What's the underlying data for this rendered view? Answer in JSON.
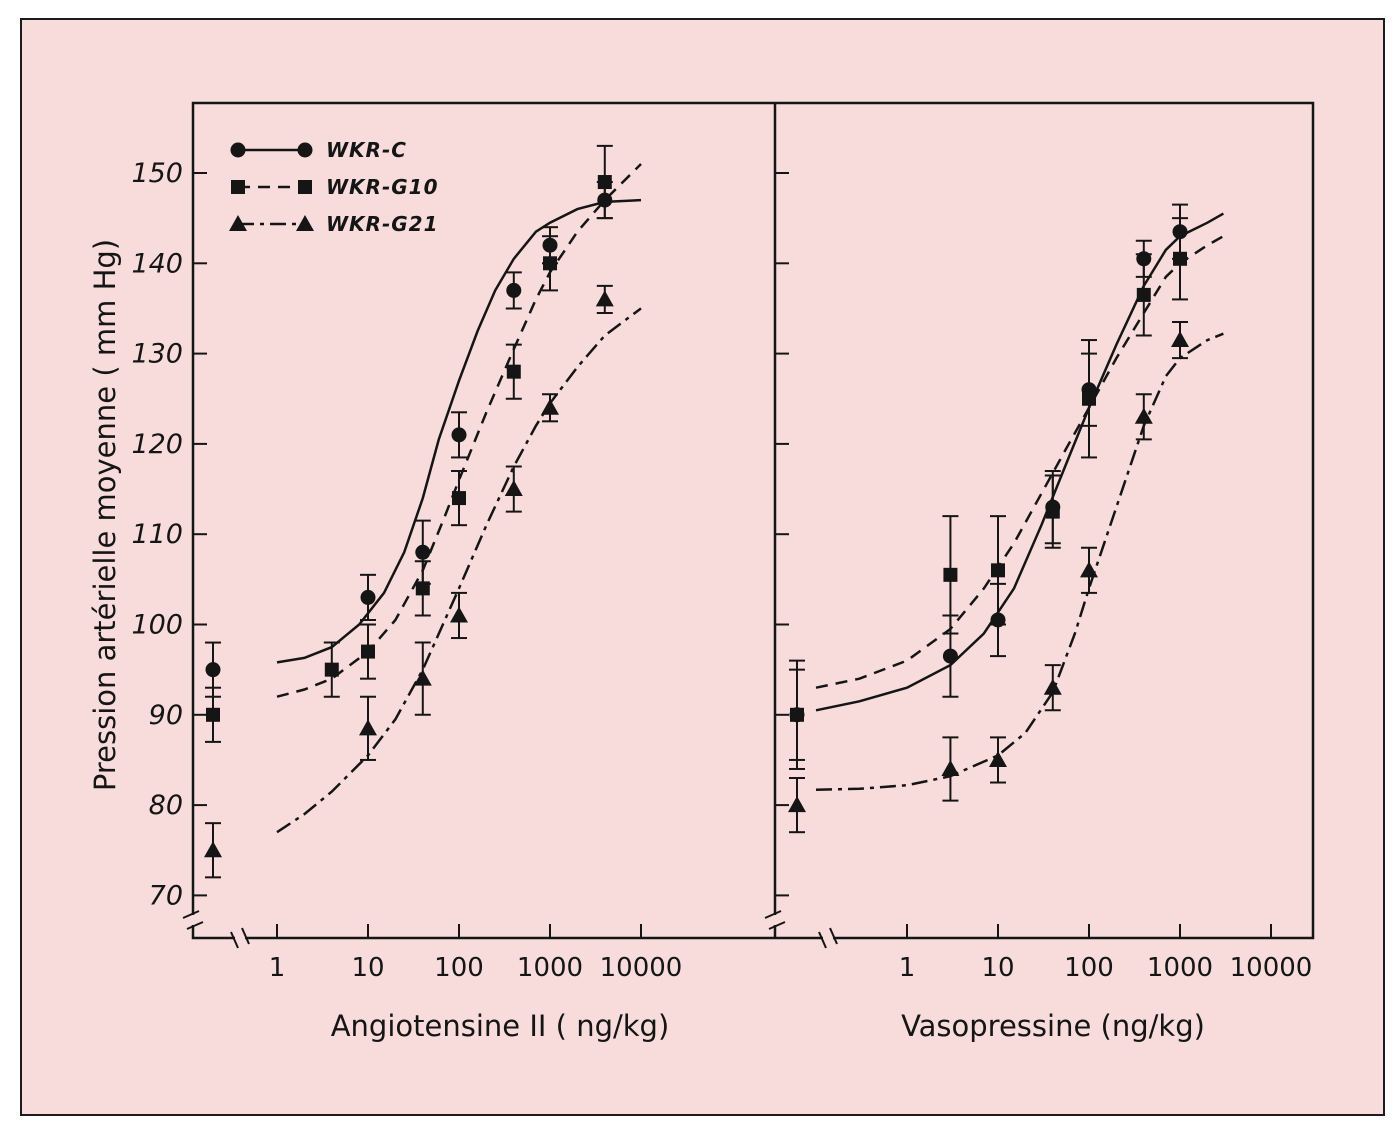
{
  "chart_data": {
    "type": "line",
    "y_label": "Pression artérielle moyenne ( mm Hg)",
    "y_ticks": [
      "70",
      "80",
      "90",
      "100",
      "110",
      "120",
      "130",
      "140",
      "150"
    ],
    "ylim": [
      68,
      158
    ],
    "x_scale": "log",
    "legend": [
      {
        "name": "WKR-C",
        "marker": "circle",
        "line": "solid"
      },
      {
        "name": "WKR-G10",
        "marker": "square",
        "line": "dashed"
      },
      {
        "name": "WKR-G21",
        "marker": "triangle",
        "line": "dash-dot"
      }
    ],
    "colors": {
      "background": "#f8dcdc",
      "ink": "#151515"
    },
    "panels": [
      {
        "x_label": "Angiotensine II ( ng/kg)",
        "x_ticks": [
          "1",
          "10",
          "100",
          "1000",
          "10000"
        ],
        "series": [
          {
            "name": "WKR-C",
            "baseline": {
              "y": 95,
              "err": 3
            },
            "points": [
              {
                "x": 10,
                "y": 103,
                "err": 2.5
              },
              {
                "x": 40,
                "y": 108,
                "err": 3.5
              },
              {
                "x": 100,
                "y": 121,
                "err": 2.5
              },
              {
                "x": 400,
                "y": 137,
                "err": 2
              },
              {
                "x": 1000,
                "y": 142,
                "err": 2
              },
              {
                "x": 4000,
                "y": 147,
                "err": 2
              }
            ],
            "curve": [
              [
                1,
                95.8
              ],
              [
                2,
                96.3
              ],
              [
                4,
                97.5
              ],
              [
                8,
                100
              ],
              [
                15,
                103.5
              ],
              [
                25,
                108
              ],
              [
                40,
                114
              ],
              [
                60,
                120.5
              ],
              [
                100,
                127
              ],
              [
                160,
                132.5
              ],
              [
                250,
                137
              ],
              [
                400,
                140.5
              ],
              [
                700,
                143.5
              ],
              [
                1000,
                144.5
              ],
              [
                2000,
                146
              ],
              [
                4000,
                146.8
              ],
              [
                10000,
                147
              ]
            ]
          },
          {
            "name": "WKR-G10",
            "baseline": {
              "y": 90,
              "err": 3
            },
            "points": [
              {
                "x": 4,
                "y": 95,
                "err": 3
              },
              {
                "x": 10,
                "y": 97,
                "err": 3
              },
              {
                "x": 40,
                "y": 104,
                "err": 3
              },
              {
                "x": 100,
                "y": 114,
                "err": 3
              },
              {
                "x": 400,
                "y": 128,
                "err": 3
              },
              {
                "x": 1000,
                "y": 140,
                "err": 3
              },
              {
                "x": 4000,
                "y": 149,
                "err": 4
              }
            ],
            "curve": [
              [
                1,
                92
              ],
              [
                2,
                92.8
              ],
              [
                4,
                94
              ],
              [
                10,
                97
              ],
              [
                20,
                100.5
              ],
              [
                40,
                106
              ],
              [
                70,
                112
              ],
              [
                100,
                116
              ],
              [
                200,
                123.5
              ],
              [
                400,
                130.5
              ],
              [
                700,
                136
              ],
              [
                1000,
                139
              ],
              [
                2000,
                143.5
              ],
              [
                4000,
                147
              ],
              [
                10000,
                151
              ]
            ]
          },
          {
            "name": "WKR-G21",
            "baseline": {
              "y": 75,
              "err": 3
            },
            "points": [
              {
                "x": 10,
                "y": 88.5,
                "err": 3.5
              },
              {
                "x": 40,
                "y": 94,
                "err": 4
              },
              {
                "x": 100,
                "y": 101,
                "err": 2.5
              },
              {
                "x": 400,
                "y": 115,
                "err": 2.5
              },
              {
                "x": 1000,
                "y": 124,
                "err": 1.5
              },
              {
                "x": 4000,
                "y": 136,
                "err": 1.5
              }
            ],
            "curve": [
              [
                1,
                77
              ],
              [
                2,
                79
              ],
              [
                4,
                81.5
              ],
              [
                10,
                85.5
              ],
              [
                20,
                89.5
              ],
              [
                40,
                95
              ],
              [
                70,
                100.5
              ],
              [
                100,
                104
              ],
              [
                200,
                111
              ],
              [
                400,
                117.5
              ],
              [
                700,
                122
              ],
              [
                1000,
                124.5
              ],
              [
                2000,
                128.5
              ],
              [
                4000,
                132
              ],
              [
                10000,
                135
              ]
            ]
          }
        ]
      },
      {
        "x_label": "Vasopressine (ng/kg)",
        "x_ticks": [
          "1",
          "10",
          "100",
          "1000",
          "10000"
        ],
        "series": [
          {
            "name": "WKR-C",
            "baseline": {
              "y": 90,
              "err": 5
            },
            "points": [
              {
                "x": 3,
                "y": 96.5,
                "err": 4.5
              },
              {
                "x": 10,
                "y": 100.5,
                "err": 4
              },
              {
                "x": 40,
                "y": 113,
                "err": 4
              },
              {
                "x": 100,
                "y": 126,
                "err": 4
              },
              {
                "x": 400,
                "y": 140.5,
                "err": 2
              },
              {
                "x": 1000,
                "y": 143.5,
                "err": 3
              }
            ],
            "curve": [
              [
                0.1,
                90.5
              ],
              [
                0.3,
                91.5
              ],
              [
                1,
                93
              ],
              [
                3,
                95.5
              ],
              [
                7,
                99
              ],
              [
                15,
                104
              ],
              [
                30,
                111
              ],
              [
                60,
                118.5
              ],
              [
                100,
                124
              ],
              [
                200,
                131
              ],
              [
                400,
                137.5
              ],
              [
                700,
                141.5
              ],
              [
                1000,
                143
              ],
              [
                2000,
                144.5
              ],
              [
                3000,
                145.5
              ]
            ]
          },
          {
            "name": "WKR-G10",
            "baseline": {
              "y": 90,
              "err": 6
            },
            "points": [
              {
                "x": 3,
                "y": 105.5,
                "err": 6.5
              },
              {
                "x": 10,
                "y": 106,
                "err": 6
              },
              {
                "x": 40,
                "y": 112.5,
                "err": 4
              },
              {
                "x": 100,
                "y": 125,
                "err": 6.5
              },
              {
                "x": 400,
                "y": 136.5,
                "err": 4.5
              },
              {
                "x": 1000,
                "y": 140.5,
                "err": 4.5
              }
            ],
            "curve": [
              [
                0.1,
                93
              ],
              [
                0.3,
                94
              ],
              [
                1,
                96
              ],
              [
                3,
                99.5
              ],
              [
                7,
                104
              ],
              [
                15,
                109
              ],
              [
                30,
                114.5
              ],
              [
                60,
                120
              ],
              [
                100,
                124
              ],
              [
                200,
                129.5
              ],
              [
                400,
                134.5
              ],
              [
                700,
                138.5
              ],
              [
                1000,
                140
              ],
              [
                2000,
                142
              ],
              [
                3000,
                143
              ]
            ]
          },
          {
            "name": "WKR-G21",
            "baseline": {
              "y": 80,
              "err": 3
            },
            "points": [
              {
                "x": 3,
                "y": 84,
                "err": 3.5
              },
              {
                "x": 10,
                "y": 85,
                "err": 2.5
              },
              {
                "x": 40,
                "y": 93,
                "err": 2.5
              },
              {
                "x": 100,
                "y": 106,
                "err": 2.5
              },
              {
                "x": 400,
                "y": 123,
                "err": 2.5
              },
              {
                "x": 1000,
                "y": 131.5,
                "err": 2
              }
            ],
            "curve": [
              [
                0.1,
                81.7
              ],
              [
                0.3,
                81.8
              ],
              [
                1,
                82.2
              ],
              [
                3,
                83.2
              ],
              [
                10,
                85.5
              ],
              [
                20,
                88
              ],
              [
                40,
                92.5
              ],
              [
                70,
                99
              ],
              [
                100,
                104
              ],
              [
                200,
                113
              ],
              [
                400,
                122
              ],
              [
                700,
                127.5
              ],
              [
                1000,
                129.5
              ],
              [
                2000,
                131.5
              ],
              [
                3000,
                132.2
              ]
            ]
          }
        ]
      }
    ]
  }
}
